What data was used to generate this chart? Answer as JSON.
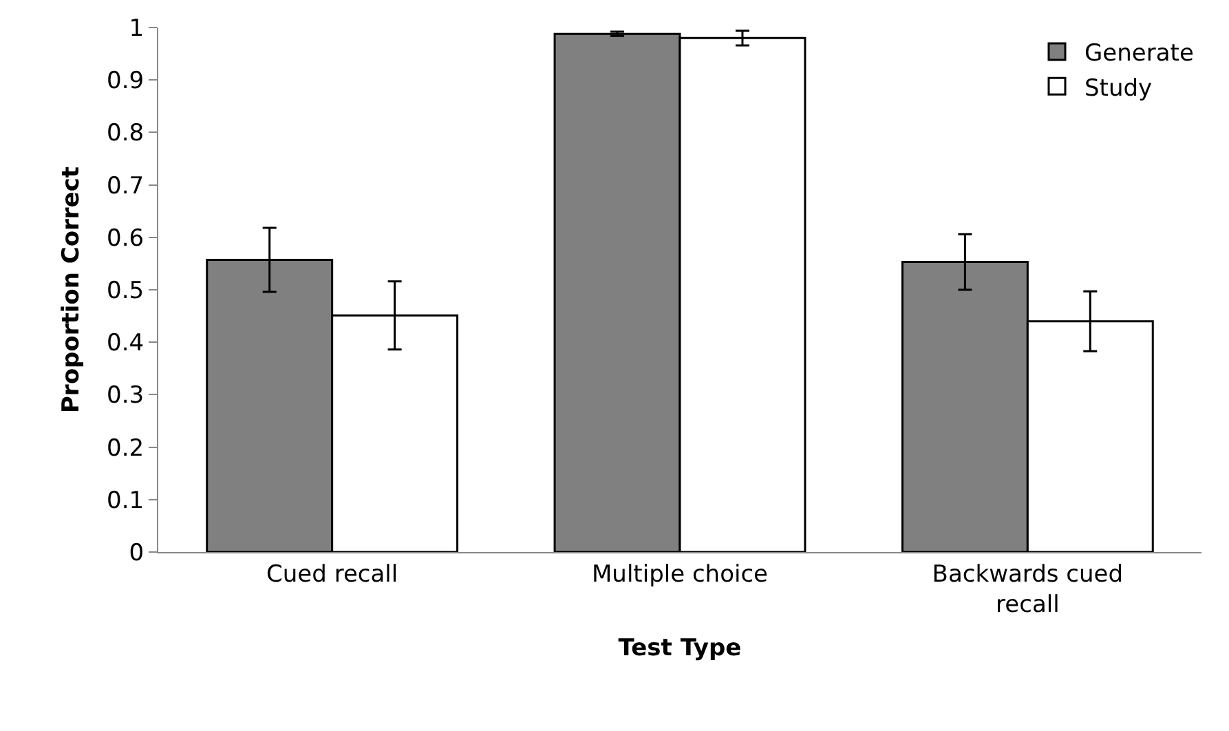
{
  "chart_data": {
    "type": "bar",
    "xlabel": "Test Type",
    "ylabel": "Proportion Correct",
    "categories": [
      "Cued recall",
      "Multiple choice",
      "Backwards cued recall"
    ],
    "series": [
      {
        "name": "Generate",
        "color": "#808080",
        "values": [
          0.557,
          0.988,
          0.553
        ],
        "errors": [
          0.061,
          0.004,
          0.053
        ]
      },
      {
        "name": "Study",
        "color": "#ffffff",
        "values": [
          0.451,
          0.98,
          0.44
        ],
        "errors": [
          0.065,
          0.014,
          0.057
        ]
      }
    ],
    "ylim": [
      0,
      1
    ],
    "yticks": [
      0,
      0.1,
      0.2,
      0.3,
      0.4,
      0.5,
      0.6,
      0.7,
      0.8,
      0.9,
      1
    ],
    "grid": false,
    "legend": "top right"
  }
}
